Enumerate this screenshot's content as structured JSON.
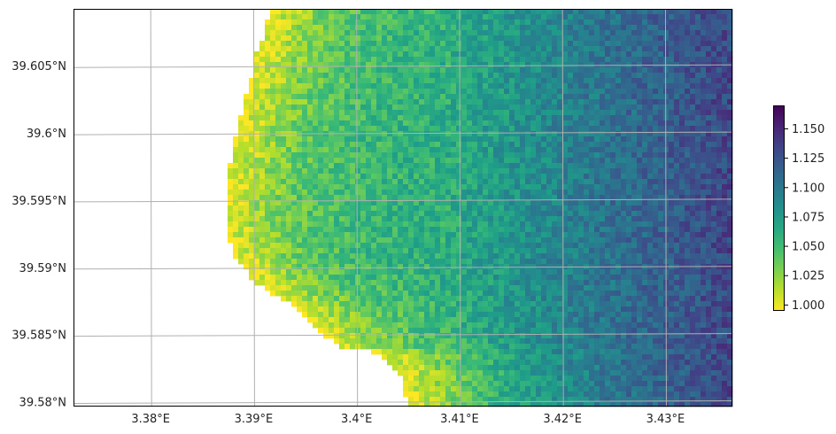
{
  "chart_data": {
    "type": "heatmap",
    "title": "",
    "xlabel": "",
    "ylabel": "",
    "x_ticks": [
      "3.38°E",
      "3.39°E",
      "3.4°E",
      "3.41°E",
      "3.42°E",
      "3.43°E"
    ],
    "y_ticks": [
      "39.605°N",
      "39.6°N",
      "39.595°N",
      "39.59°N",
      "39.585°N",
      "39.58°N"
    ],
    "x_tick_values": [
      3.38,
      3.39,
      3.4,
      3.41,
      3.42,
      3.43
    ],
    "y_tick_values": [
      39.605,
      39.6,
      39.595,
      39.59,
      39.585,
      39.58
    ],
    "xlim": [
      3.3725,
      3.4365
    ],
    "ylim": [
      39.5797,
      39.6093
    ],
    "grid": true,
    "colormap": "viridis_r",
    "colorbar": {
      "min": 0.995,
      "max": 1.17,
      "ticks": [
        "1.000",
        "1.025",
        "1.050",
        "1.075",
        "1.100",
        "1.125",
        "1.150"
      ],
      "tick_values": [
        1.0,
        1.025,
        1.05,
        1.075,
        1.1,
        1.125,
        1.15
      ]
    },
    "field_summary": {
      "coast_side_value": 1.0,
      "offshore_value": 1.13,
      "note_regions": "no-data region along the western (left) side"
    }
  }
}
